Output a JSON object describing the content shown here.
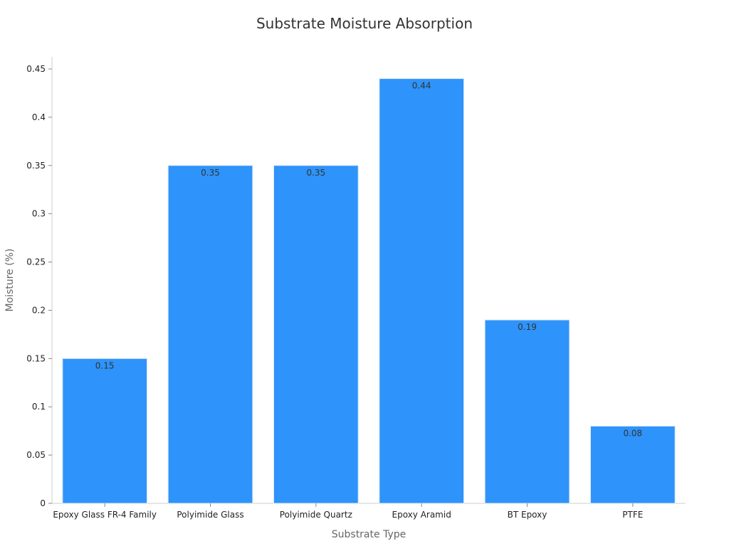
{
  "chart_data": {
    "type": "bar",
    "title": "Substrate Moisture Absorption",
    "xlabel": "Substrate Type",
    "ylabel": "Moisture (%)",
    "categories": [
      "Epoxy Glass FR-4 Family",
      "Polyimide Glass",
      "Polyimide Quartz",
      "Epoxy Aramid",
      "BT Epoxy",
      "PTFE"
    ],
    "values": [
      0.15,
      0.35,
      0.35,
      0.44,
      0.19,
      0.08
    ],
    "value_labels": [
      "0.15",
      "0.35",
      "0.35",
      "0.44",
      "0.19",
      "0.08"
    ],
    "ylim": [
      0,
      0.45
    ],
    "yticks": [
      0,
      0.05,
      0.1,
      0.15,
      0.2,
      0.25,
      0.3,
      0.35,
      0.4,
      0.45
    ],
    "ytick_labels": [
      "0",
      "0.05",
      "0.1",
      "0.15",
      "0.2",
      "0.25",
      "0.3",
      "0.35",
      "0.4",
      "0.45"
    ],
    "grid": false,
    "legend": "none",
    "bar_color": "#2e93fa",
    "bar_edge_color": "#d8e8f8"
  }
}
